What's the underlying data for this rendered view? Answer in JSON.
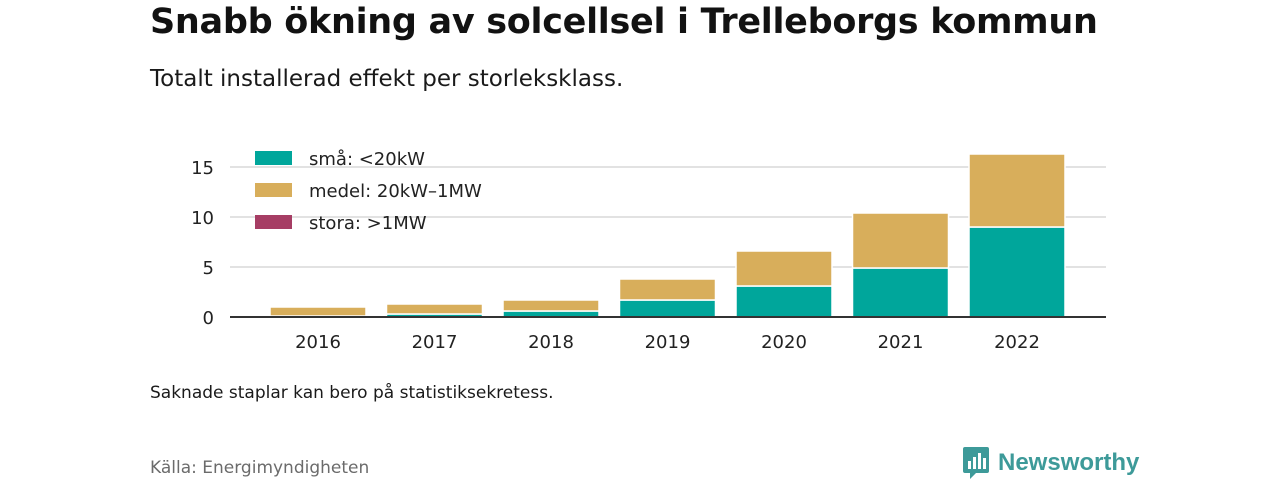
{
  "header": {
    "title": "Snabb ökning av solcellsel i Trelleborgs kommun",
    "subtitle": "Totalt installerad effekt per storleksklass."
  },
  "footer": {
    "note": "Saknade staplar kan bero på statistiksekretess.",
    "source": "Källa: Energimyndigheten",
    "brand": "Newsworthy",
    "brand_icon": "newsworthy-logo-icon"
  },
  "colors": {
    "small": "#00a69b",
    "medium": "#d8ae5b",
    "large": "#a63d64",
    "grid": "#d9d9d9",
    "axis": "#333333",
    "brand": "#3d9a99"
  },
  "chart_data": {
    "type": "bar",
    "stacked": true,
    "categories": [
      "2016",
      "2017",
      "2018",
      "2019",
      "2020",
      "2021",
      "2022"
    ],
    "series": [
      {
        "name": "små: <20kW",
        "values": [
          0.1,
          0.3,
          0.6,
          1.7,
          3.1,
          4.9,
          9.0
        ]
      },
      {
        "name": "medel: 20kW–1MW",
        "values": [
          0.9,
          1.0,
          1.1,
          2.1,
          3.5,
          5.5,
          7.3
        ]
      },
      {
        "name": "stora: >1MW",
        "values": [
          0,
          0,
          0,
          0,
          0,
          0,
          0
        ]
      }
    ],
    "yticks": [
      0,
      5,
      10,
      15
    ],
    "ylim": [
      0,
      16.5
    ],
    "xlabel": "",
    "ylabel": "",
    "grid": true,
    "legend_position": "top-left"
  }
}
